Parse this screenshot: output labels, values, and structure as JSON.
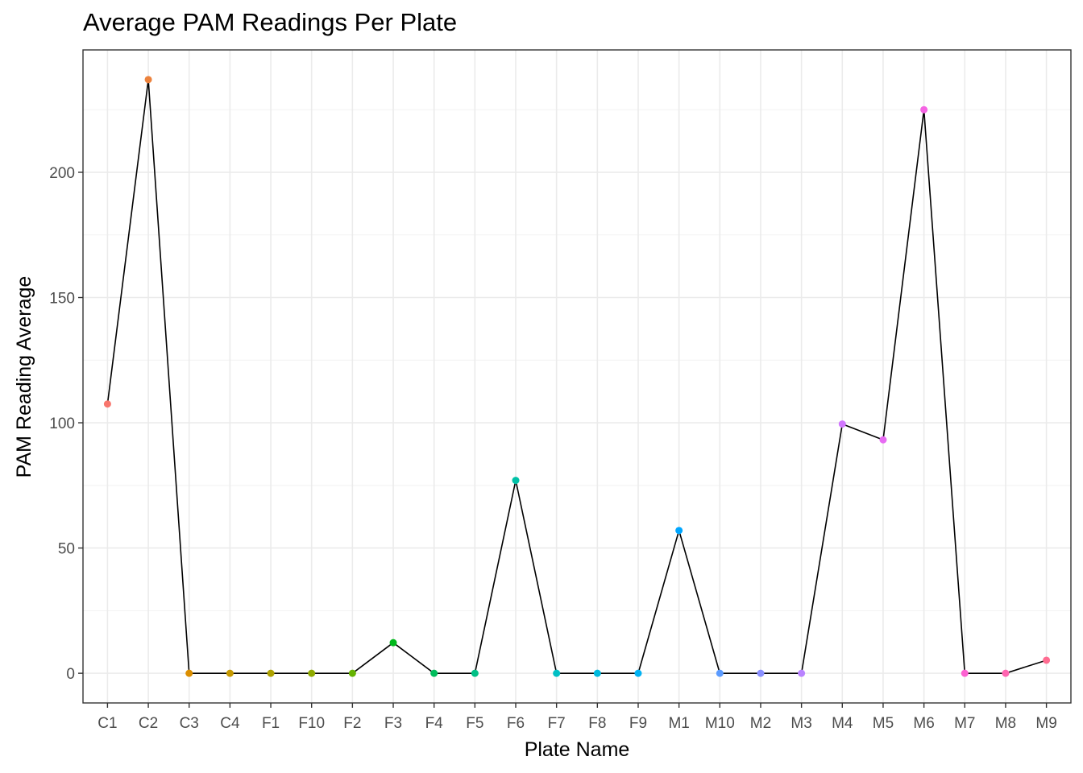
{
  "chart_data": {
    "type": "line",
    "title": "Average PAM Readings Per Plate",
    "xlabel": "Plate Name",
    "ylabel": "PAM Reading Average",
    "categories": [
      "C1",
      "C2",
      "C3",
      "C4",
      "F1",
      "F10",
      "F2",
      "F3",
      "F4",
      "F5",
      "F6",
      "F7",
      "F8",
      "F9",
      "M1",
      "M10",
      "M2",
      "M3",
      "M4",
      "M5",
      "M6",
      "M7",
      "M8",
      "M9"
    ],
    "values": [
      107.5,
      237,
      0,
      0,
      0,
      0,
      0,
      12.2,
      0,
      0,
      77,
      0,
      0,
      0,
      57,
      0,
      0,
      0,
      99.5,
      93.2,
      225,
      0,
      0,
      5.2
    ],
    "point_colors": [
      "#F8766D",
      "#EC823C",
      "#DB8E00",
      "#C69900",
      "#AEA200",
      "#8FAA00",
      "#64B200",
      "#00B81B",
      "#00BD5C",
      "#00C085",
      "#00C1A7",
      "#00BFC4",
      "#00BADE",
      "#00B2F3",
      "#00A6FF",
      "#5B9BFF",
      "#8A90FF",
      "#B983FF",
      "#D177FE",
      "#E76BF3",
      "#F564E3",
      "#FD61D1",
      "#FF64B0",
      "#FF6C91"
    ],
    "line_color": "#000000",
    "ylim": [
      -11.85,
      248.85
    ],
    "yticks": [
      0,
      50,
      100,
      150,
      200
    ],
    "grid": true,
    "legend": "none"
  }
}
